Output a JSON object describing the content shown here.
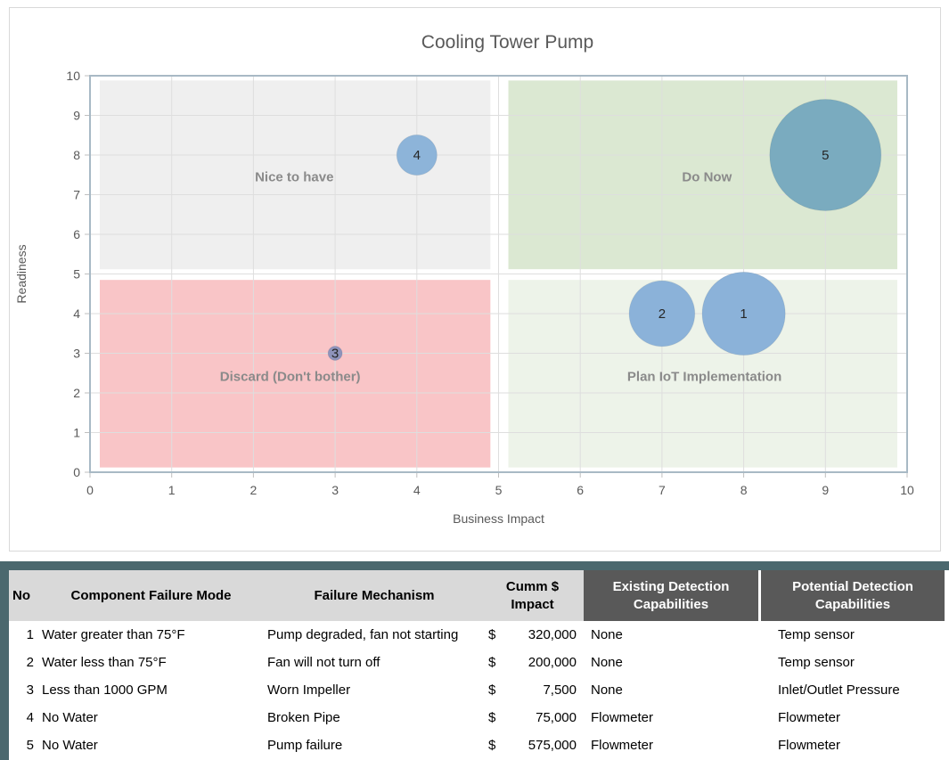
{
  "chart_data": {
    "type": "bubble",
    "title": "Cooling Tower Pump",
    "xlabel": "Business Impact",
    "ylabel": "Readiness",
    "xlim": [
      0,
      10
    ],
    "ylim": [
      0,
      10
    ],
    "xticks": [
      0,
      1,
      2,
      3,
      4,
      5,
      6,
      7,
      8,
      9,
      10
    ],
    "yticks": [
      0,
      1,
      2,
      3,
      4,
      5,
      6,
      7,
      8,
      9,
      10
    ],
    "grid": true,
    "legend": "none",
    "quadrants": [
      {
        "label": "Nice to have",
        "x0": 0.12,
        "x1": 4.9,
        "y0": 5.12,
        "y1": 9.88,
        "color": "#efefef",
        "label_x": 2.5,
        "label_y": 7.45
      },
      {
        "label": "Do Now",
        "x0": 5.12,
        "x1": 9.88,
        "y0": 5.12,
        "y1": 9.88,
        "color": "#dbe8d2",
        "label_x": 7.55,
        "label_y": 7.45
      },
      {
        "label": "Discard (Don't bother)",
        "x0": 0.12,
        "x1": 4.9,
        "y0": 0.12,
        "y1": 4.85,
        "color": "#f9c5c7",
        "label_x": 2.45,
        "label_y": 2.42
      },
      {
        "label": "Plan IoT Implementation",
        "x0": 5.12,
        "x1": 9.88,
        "y0": 0.12,
        "y1": 4.85,
        "color": "#edf3e9",
        "label_x": 7.52,
        "label_y": 2.42
      }
    ],
    "points": [
      {
        "label": "1",
        "x": 8,
        "y": 4,
        "impact": 320000,
        "color": "#8bb2d9"
      },
      {
        "label": "2",
        "x": 7,
        "y": 4,
        "impact": 200000,
        "color": "#8bb2d9"
      },
      {
        "label": "3",
        "x": 3,
        "y": 3,
        "impact": 7500,
        "color": "#8e93bb"
      },
      {
        "label": "4",
        "x": 4,
        "y": 8,
        "impact": 75000,
        "color": "#8db4d9"
      },
      {
        "label": "5",
        "x": 9,
        "y": 8,
        "impact": 575000,
        "color": "#7aabbf"
      }
    ],
    "size_max_radius_px": 62.5,
    "size_ref_impact": 575000,
    "colors": {
      "title_text": "#595959",
      "tick_text": "#595959",
      "quadrant_label_text": "#8a8a8a",
      "gridline": "#dedede",
      "plot_border": "#a8b9c5",
      "bubble_label_text": "#262626"
    }
  },
  "table": {
    "currency_symbol": "$",
    "accent_color": "#4b686e",
    "header_light_bg": "#d9d9d9",
    "header_dark_bg": "#595959",
    "headers": {
      "no": "No",
      "component": "Component Failure Mode",
      "mechanism": "Failure Mechanism",
      "impact": "Cumm $ Impact",
      "existing": "Existing Detection Capabilities",
      "potential": "Potential Detection Capabilities"
    },
    "rows": [
      {
        "no": "1",
        "component": "Water greater than 75°F",
        "mechanism": "Pump degraded, fan not starting",
        "impact": "320,000",
        "existing": "None",
        "potential": "Temp sensor"
      },
      {
        "no": "2",
        "component": "Water less than 75°F",
        "mechanism": "Fan will not turn off",
        "impact": "200,000",
        "existing": "None",
        "potential": "Temp sensor"
      },
      {
        "no": "3",
        "component": "Less than 1000 GPM",
        "mechanism": "Worn Impeller",
        "impact": "7,500",
        "existing": "None",
        "potential": "Inlet/Outlet Pressure"
      },
      {
        "no": "4",
        "component": "No Water",
        "mechanism": "Broken Pipe",
        "impact": "75,000",
        "existing": "Flowmeter",
        "potential": "Flowmeter"
      },
      {
        "no": "5",
        "component": "No Water",
        "mechanism": "Pump failure",
        "impact": "575,000",
        "existing": "Flowmeter",
        "potential": "Flowmeter"
      }
    ]
  }
}
